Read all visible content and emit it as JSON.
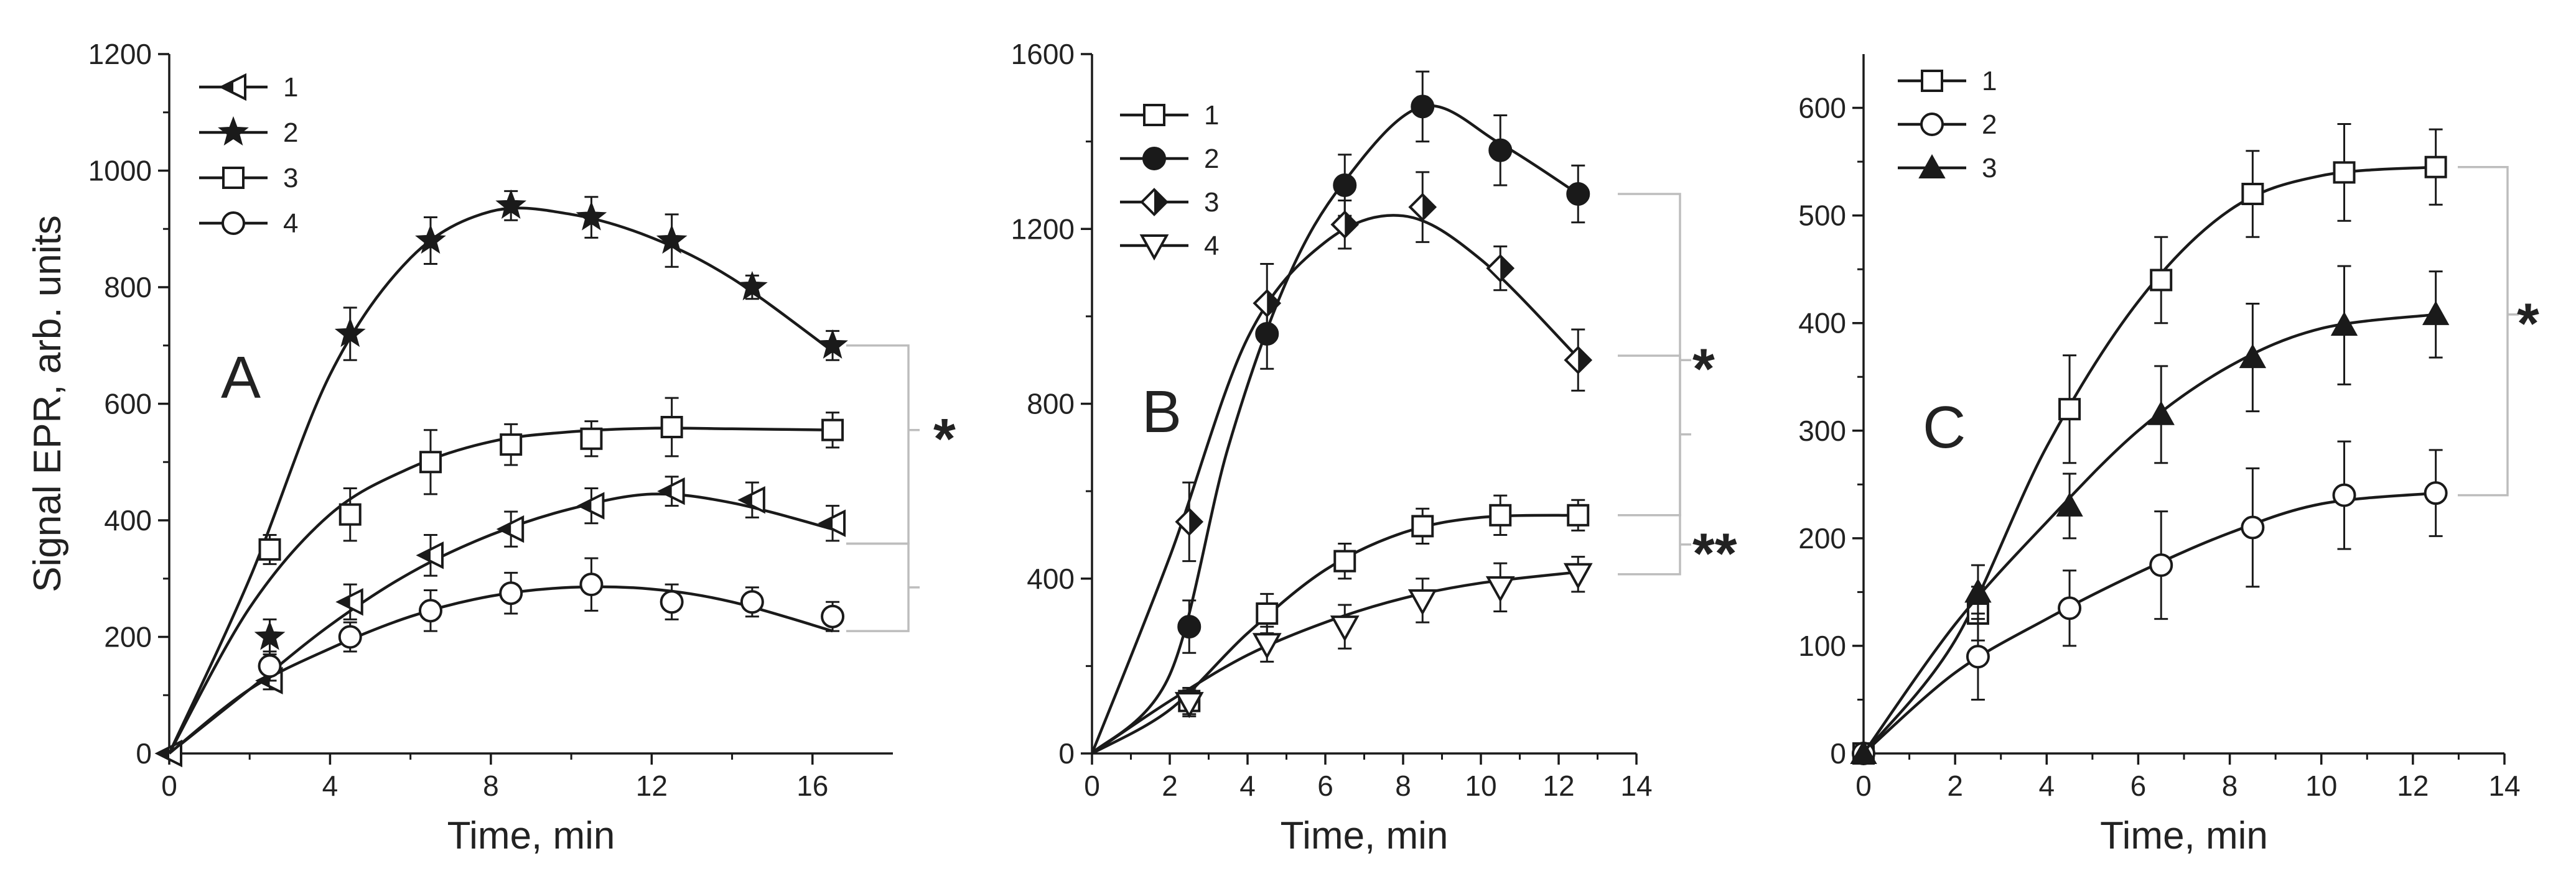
{
  "colors": {
    "line": "#1a1a1a",
    "bracket": "#bdbdbd",
    "background": "#ffffff"
  },
  "chart_data": [
    {
      "type": "line",
      "panel_label": "A",
      "xlabel": "Time, min",
      "ylabel": "Signal EPR, arb. units",
      "xlim": [
        0,
        18
      ],
      "ylim": [
        0,
        1200
      ],
      "xticks": [
        0,
        4,
        8,
        12,
        16
      ],
      "yticks": [
        0,
        200,
        400,
        600,
        800,
        1000,
        1200
      ],
      "legend_position": "top-left",
      "series": [
        {
          "name": "1",
          "marker": "half-triangle-left",
          "x": [
            0,
            2.5,
            4.5,
            6.5,
            8.5,
            10.5,
            12.5,
            14.5,
            16.5
          ],
          "y": [
            0,
            125,
            260,
            340,
            385,
            425,
            450,
            435,
            395
          ],
          "err": [
            0,
            15,
            30,
            35,
            30,
            30,
            25,
            30,
            30
          ],
          "curve": [
            [
              0,
              0
            ],
            [
              2,
              110
            ],
            [
              4,
              220
            ],
            [
              6,
              310
            ],
            [
              8,
              375
            ],
            [
              10,
              420
            ],
            [
              12,
              445
            ],
            [
              14,
              430
            ],
            [
              16.5,
              385
            ]
          ]
        },
        {
          "name": "2",
          "marker": "star",
          "x": [
            2.5,
            4.5,
            6.5,
            8.5,
            10.5,
            12.5,
            14.5,
            16.5
          ],
          "y": [
            200,
            720,
            880,
            940,
            920,
            880,
            800,
            700
          ],
          "err": [
            30,
            45,
            40,
            25,
            35,
            45,
            20,
            25
          ],
          "curve": [
            [
              0,
              0
            ],
            [
              2,
              300
            ],
            [
              4,
              650
            ],
            [
              6,
              850
            ],
            [
              8,
              930
            ],
            [
              10,
              925
            ],
            [
              12,
              885
            ],
            [
              14,
              815
            ],
            [
              16.5,
              690
            ]
          ]
        },
        {
          "name": "3",
          "marker": "open-square",
          "x": [
            2.5,
            4.5,
            6.5,
            8.5,
            10.5,
            12.5,
            16.5
          ],
          "y": [
            350,
            410,
            500,
            530,
            540,
            560,
            555
          ],
          "err": [
            25,
            45,
            55,
            35,
            30,
            50,
            30
          ],
          "curve": [
            [
              0,
              0
            ],
            [
              2,
              250
            ],
            [
              4,
              410
            ],
            [
              6,
              490
            ],
            [
              8,
              535
            ],
            [
              10,
              552
            ],
            [
              12,
              558
            ],
            [
              14,
              557
            ],
            [
              16.5,
              555
            ]
          ]
        },
        {
          "name": "4",
          "marker": "open-circle",
          "x": [
            2.5,
            4.5,
            6.5,
            8.5,
            10.5,
            12.5,
            14.5,
            16.5
          ],
          "y": [
            150,
            200,
            245,
            275,
            290,
            260,
            260,
            235
          ],
          "err": [
            25,
            25,
            35,
            35,
            45,
            30,
            25,
            25
          ],
          "curve": [
            [
              0,
              0
            ],
            [
              2,
              110
            ],
            [
              4,
              180
            ],
            [
              6,
              235
            ],
            [
              8,
              270
            ],
            [
              10,
              285
            ],
            [
              12,
              282
            ],
            [
              14,
              260
            ],
            [
              16.5,
              210
            ]
          ]
        }
      ],
      "significance": [
        {
          "label": "*",
          "from_y": 700,
          "to_y": 360,
          "mid_y": 555
        },
        {
          "label": "",
          "from_y": 360,
          "to_y": 210,
          "mid_y": 285
        }
      ]
    },
    {
      "type": "line",
      "panel_label": "B",
      "xlabel": "Time, min",
      "ylabel": "",
      "xlim": [
        0,
        14
      ],
      "ylim": [
        0,
        1600
      ],
      "xticks": [
        0,
        2,
        4,
        6,
        8,
        10,
        12,
        14
      ],
      "yticks": [
        0,
        400,
        800,
        1200,
        1600
      ],
      "legend_position": "top-left",
      "series": [
        {
          "name": "1",
          "marker": "open-square",
          "x": [
            2.5,
            4.5,
            6.5,
            8.5,
            10.5,
            12.5
          ],
          "y": [
            120,
            320,
            440,
            520,
            545,
            545
          ],
          "err": [
            30,
            45,
            40,
            40,
            45,
            35
          ],
          "curve": [
            [
              0,
              0
            ],
            [
              2,
              100
            ],
            [
              4,
              275
            ],
            [
              6,
              420
            ],
            [
              8,
              505
            ],
            [
              10,
              540
            ],
            [
              12.5,
              545
            ]
          ]
        },
        {
          "name": "2",
          "marker": "filled-circle",
          "x": [
            2.5,
            4.5,
            6.5,
            8.5,
            10.5,
            12.5
          ],
          "y": [
            290,
            960,
            1300,
            1480,
            1380,
            1280
          ],
          "err": [
            60,
            80,
            70,
            80,
            80,
            65
          ],
          "curve": [
            [
              0,
              0
            ],
            [
              2,
              180
            ],
            [
              3.5,
              700
            ],
            [
              5,
              1080
            ],
            [
              6.5,
              1310
            ],
            [
              8.5,
              1480
            ],
            [
              10.5,
              1395
            ],
            [
              12.5,
              1280
            ]
          ]
        },
        {
          "name": "3",
          "marker": "half-diamond",
          "x": [
            2.5,
            4.5,
            6.5,
            8.5,
            10.5,
            12.5
          ],
          "y": [
            530,
            1030,
            1210,
            1250,
            1110,
            900
          ],
          "err": [
            90,
            90,
            55,
            80,
            50,
            70
          ],
          "curve": [
            [
              0,
              0
            ],
            [
              2,
              450
            ],
            [
              4,
              950
            ],
            [
              6,
              1170
            ],
            [
              8,
              1230
            ],
            [
              10,
              1130
            ],
            [
              12.5,
              905
            ]
          ]
        },
        {
          "name": "4",
          "marker": "open-triangle-down",
          "x": [
            2.5,
            4.5,
            6.5,
            8.5,
            10.5,
            12.5
          ],
          "y": [
            115,
            250,
            290,
            350,
            380,
            410
          ],
          "err": [
            30,
            40,
            50,
            50,
            55,
            40
          ],
          "curve": [
            [
              0,
              0
            ],
            [
              2,
              120
            ],
            [
              4,
              225
            ],
            [
              6,
              300
            ],
            [
              8,
              355
            ],
            [
              10,
              390
            ],
            [
              12.5,
              415
            ]
          ]
        }
      ],
      "significance": [
        {
          "label": "*",
          "from_y": 1280,
          "to_y": 545,
          "mid_y": 900
        },
        {
          "label": "",
          "from_y": 910,
          "to_y": 545,
          "mid_y": 730
        },
        {
          "label": "**",
          "from_y": 545,
          "to_y": 410,
          "mid_y": 478
        }
      ]
    },
    {
      "type": "line",
      "panel_label": "C",
      "xlabel": "Time, min",
      "ylabel": "",
      "xlim": [
        0,
        14
      ],
      "ylim": [
        0,
        650
      ],
      "xticks": [
        0,
        2,
        4,
        6,
        8,
        10,
        12,
        14
      ],
      "yticks": [
        0,
        100,
        200,
        300,
        400,
        500,
        600
      ],
      "legend_position": "top-left",
      "series": [
        {
          "name": "1",
          "marker": "open-square",
          "x": [
            0,
            2.5,
            4.5,
            6.5,
            8.5,
            10.5,
            12.5
          ],
          "y": [
            0,
            130,
            320,
            440,
            520,
            540,
            545
          ],
          "err": [
            0,
            25,
            50,
            40,
            40,
            45,
            35
          ],
          "curve": [
            [
              0,
              0
            ],
            [
              2,
              105
            ],
            [
              4,
              285
            ],
            [
              6,
              420
            ],
            [
              8,
              505
            ],
            [
              10,
              537
            ],
            [
              12.5,
              545
            ]
          ]
        },
        {
          "name": "2",
          "marker": "open-circle",
          "x": [
            0,
            2.5,
            4.5,
            6.5,
            8.5,
            10.5,
            12.5
          ],
          "y": [
            0,
            90,
            135,
            175,
            210,
            240,
            242
          ],
          "err": [
            0,
            40,
            35,
            50,
            55,
            50,
            40
          ],
          "curve": [
            [
              0,
              0
            ],
            [
              2,
              75
            ],
            [
              4,
              125
            ],
            [
              6,
              168
            ],
            [
              8,
              205
            ],
            [
              10,
              232
            ],
            [
              12.5,
              242
            ]
          ]
        },
        {
          "name": "3",
          "marker": "filled-triangle-up",
          "x": [
            0,
            2.5,
            4.5,
            6.5,
            8.5,
            10.5,
            12.5
          ],
          "y": [
            0,
            150,
            230,
            315,
            368,
            398,
            408
          ],
          "err": [
            0,
            25,
            30,
            45,
            50,
            55,
            40
          ],
          "curve": [
            [
              0,
              0
            ],
            [
              2,
              120
            ],
            [
              4,
              215
            ],
            [
              6,
              300
            ],
            [
              8,
              360
            ],
            [
              10,
              395
            ],
            [
              12.5,
              408
            ]
          ]
        }
      ],
      "significance": [
        {
          "label": "*",
          "from_y": 545,
          "to_y": 240,
          "mid_y": 408
        }
      ]
    }
  ]
}
